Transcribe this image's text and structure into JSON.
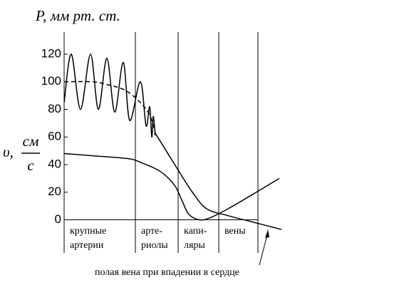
{
  "chart_data": {
    "type": "line",
    "ylabel": "P, мм рт. ст.",
    "ylabel_v": "υ,",
    "ylabel_v_num": "см",
    "ylabel_v_den": "с",
    "annotation": "полая вена при впадении в сердце",
    "categories": [
      [
        "крупные",
        "артерии"
      ],
      [
        "арте-",
        "риолы"
      ],
      [
        "капи-",
        "ляры"
      ],
      [
        "вены"
      ]
    ],
    "boundaries": [
      0,
      100,
      160,
      217,
      272
    ],
    "xlim": [
      0,
      302
    ],
    "ylim": [
      -24,
      136
    ],
    "yticks": [
      0,
      20,
      40,
      60,
      80,
      100,
      120
    ],
    "series": [
      {
        "style": "solid",
        "color": "#000",
        "x": [
          0,
          10,
          23,
          37,
          48,
          60,
          71,
          83,
          92,
          107,
          115,
          120,
          123,
          125,
          128,
          130,
          160,
          180,
          200,
          230,
          260,
          275,
          305
        ],
        "values": [
          85,
          120,
          80,
          120,
          80,
          117,
          78,
          114,
          72,
          100,
          68,
          82,
          60,
          75,
          62,
          61,
          36,
          20,
          8,
          3,
          -1,
          -3,
          -7
        ]
      },
      {
        "style": "dashed",
        "color": "#000",
        "x": [
          0,
          40,
          60,
          85,
          105,
          120,
          128
        ],
        "values": [
          100,
          100,
          98,
          94,
          86,
          76,
          63
        ]
      },
      {
        "style": "solid",
        "color": "#000",
        "x": [
          0,
          40,
          90,
          110,
          135,
          155,
          165,
          175,
          190,
          205,
          230,
          260,
          302
        ],
        "values": [
          48,
          46.4,
          44.3,
          41,
          35,
          25,
          14.4,
          4,
          0,
          1.5,
          8,
          17,
          30
        ]
      }
    ]
  }
}
